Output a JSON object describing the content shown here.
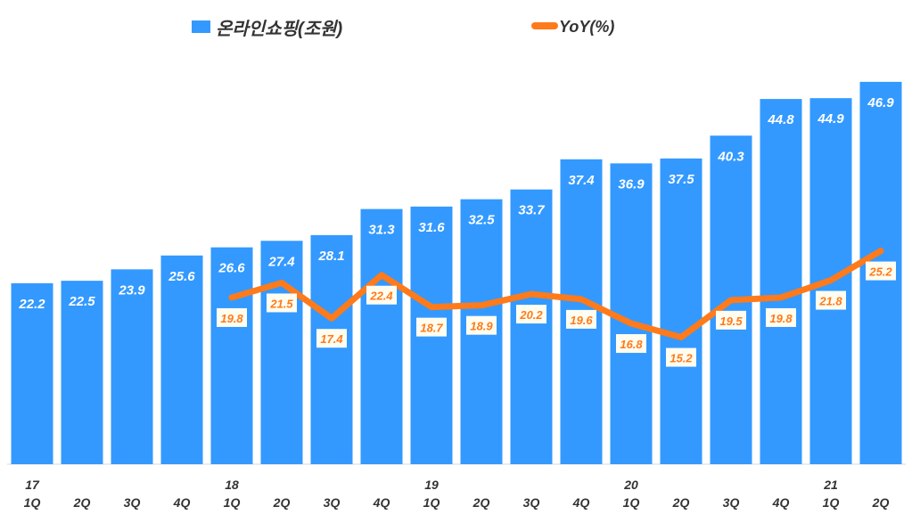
{
  "chart_data": {
    "type": "bar+line",
    "legend": {
      "placement": "top",
      "items": [
        {
          "name": "온라인쇼핑(조원)",
          "color": "#3399ff",
          "kind": "bar"
        },
        {
          "name": "YoY(%)",
          "color": "#ff7a1a",
          "kind": "line"
        }
      ]
    },
    "categories": [
      "1Q",
      "2Q",
      "3Q",
      "4Q",
      "1Q",
      "2Q",
      "3Q",
      "4Q",
      "1Q",
      "2Q",
      "3Q",
      "4Q",
      "1Q",
      "2Q",
      "3Q",
      "4Q",
      "1Q",
      "2Q"
    ],
    "years": [
      "17",
      "",
      "",
      "",
      "18",
      "",
      "",
      "",
      "19",
      "",
      "",
      "",
      "20",
      "",
      "",
      "",
      "21",
      ""
    ],
    "series": [
      {
        "name": "온라인쇼핑(조원)",
        "type": "bar",
        "values": [
          22.2,
          22.5,
          23.9,
          25.6,
          26.6,
          27.4,
          28.1,
          31.3,
          31.6,
          32.5,
          33.7,
          37.4,
          36.9,
          37.5,
          40.3,
          44.8,
          44.9,
          46.9
        ]
      },
      {
        "name": "YoY(%)",
        "type": "line",
        "values": [
          null,
          null,
          null,
          null,
          19.8,
          21.5,
          17.4,
          22.4,
          18.7,
          18.9,
          20.2,
          19.6,
          16.8,
          15.2,
          19.5,
          19.8,
          21.8,
          25.2
        ]
      }
    ],
    "grid": false,
    "colors": {
      "bar": "#3399ff",
      "line": "#ff7a1a",
      "bar_label": "#ffffff",
      "line_label": "#ff7a1a",
      "line_label_bg": "#fffdf0",
      "axis_text": "#333333"
    }
  }
}
